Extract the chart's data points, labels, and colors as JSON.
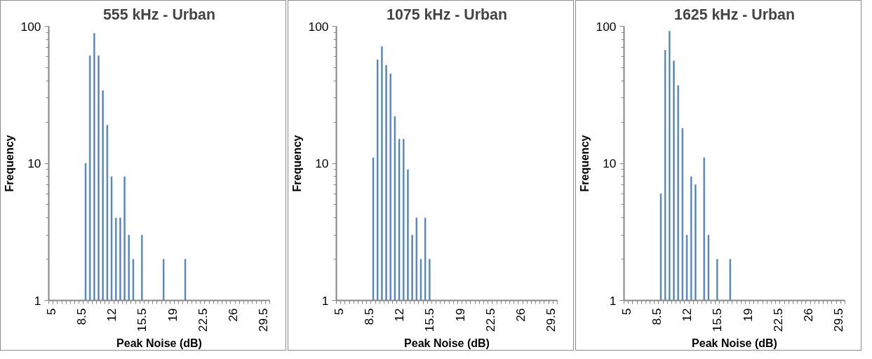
{
  "chart_data": [
    {
      "type": "bar",
      "title": "555 kHz - Urban",
      "xlabel": "Peak Noise (dB)",
      "ylabel": "Frequency",
      "color": "#4f81bd",
      "log": true,
      "ylim": [
        1,
        100
      ],
      "yticks": [
        1,
        10,
        100
      ],
      "grid": false,
      "categories": [
        "5",
        null,
        null,
        null,
        null,
        null,
        null,
        "8.5",
        null,
        null,
        null,
        null,
        null,
        null,
        "12",
        null,
        null,
        null,
        null,
        null,
        null,
        "15.5",
        null,
        null,
        null,
        null,
        null,
        null,
        "19",
        null,
        null,
        null,
        null,
        null,
        null,
        "22.5",
        null,
        null,
        null,
        null,
        null,
        null,
        "26",
        null,
        null,
        null,
        null,
        null,
        null,
        "29.5",
        null
      ],
      "values": [
        null,
        null,
        null,
        null,
        null,
        null,
        null,
        null,
        10,
        61,
        89,
        61,
        34,
        19,
        8,
        4,
        4,
        8,
        3,
        2,
        null,
        3,
        null,
        null,
        null,
        null,
        2,
        null,
        null,
        null,
        null,
        2,
        null,
        null,
        null,
        null,
        null,
        null,
        null,
        null,
        null,
        null,
        null,
        null,
        null,
        null,
        null,
        null,
        null,
        null,
        null
      ]
    },
    {
      "type": "bar",
      "title": "1075 kHz - Urban",
      "xlabel": "Peak Noise (dB)",
      "ylabel": "Frequency",
      "color": "#4f81bd",
      "log": true,
      "ylim": [
        1,
        100
      ],
      "yticks": [
        1,
        10,
        100
      ],
      "grid": false,
      "categories": [
        "5",
        null,
        null,
        null,
        null,
        null,
        null,
        "8.5",
        null,
        null,
        null,
        null,
        null,
        null,
        "12",
        null,
        null,
        null,
        null,
        null,
        null,
        "15.5",
        null,
        null,
        null,
        null,
        null,
        null,
        "19",
        null,
        null,
        null,
        null,
        null,
        null,
        "22.5",
        null,
        null,
        null,
        null,
        null,
        null,
        "26",
        null,
        null,
        null,
        null,
        null,
        null,
        "29.5",
        null
      ],
      "values": [
        null,
        null,
        null,
        null,
        null,
        null,
        null,
        null,
        11,
        57,
        71,
        52,
        45,
        22,
        15,
        15,
        9,
        3,
        4,
        2,
        4,
        2,
        null,
        null,
        null,
        null,
        null,
        null,
        null,
        null,
        null,
        null,
        null,
        null,
        null,
        null,
        null,
        null,
        null,
        null,
        null,
        null,
        null,
        null,
        null,
        null,
        null,
        null,
        null,
        null,
        null
      ]
    },
    {
      "type": "bar",
      "title": "1625 kHz - Urban",
      "xlabel": "Peak Noise (dB)",
      "ylabel": "Frequency",
      "color": "#4f81bd",
      "log": true,
      "ylim": [
        1,
        100
      ],
      "yticks": [
        1,
        10,
        100
      ],
      "grid": false,
      "categories": [
        "5",
        null,
        null,
        null,
        null,
        null,
        null,
        "8.5",
        null,
        null,
        null,
        null,
        null,
        null,
        "12",
        null,
        null,
        null,
        null,
        null,
        null,
        "15.5",
        null,
        null,
        null,
        null,
        null,
        null,
        "19",
        null,
        null,
        null,
        null,
        null,
        null,
        "22.5",
        null,
        null,
        null,
        null,
        null,
        null,
        "26",
        null,
        null,
        null,
        null,
        null,
        null,
        "29.5",
        null
      ],
      "values": [
        null,
        null,
        null,
        null,
        null,
        null,
        null,
        null,
        6,
        67,
        92,
        56,
        37,
        18,
        3,
        8,
        7,
        null,
        11,
        3,
        null,
        2,
        null,
        null,
        2,
        null,
        null,
        null,
        null,
        null,
        null,
        null,
        null,
        null,
        null,
        null,
        null,
        null,
        null,
        null,
        null,
        null,
        null,
        null,
        null,
        null,
        null,
        null,
        null,
        null,
        null
      ]
    }
  ]
}
